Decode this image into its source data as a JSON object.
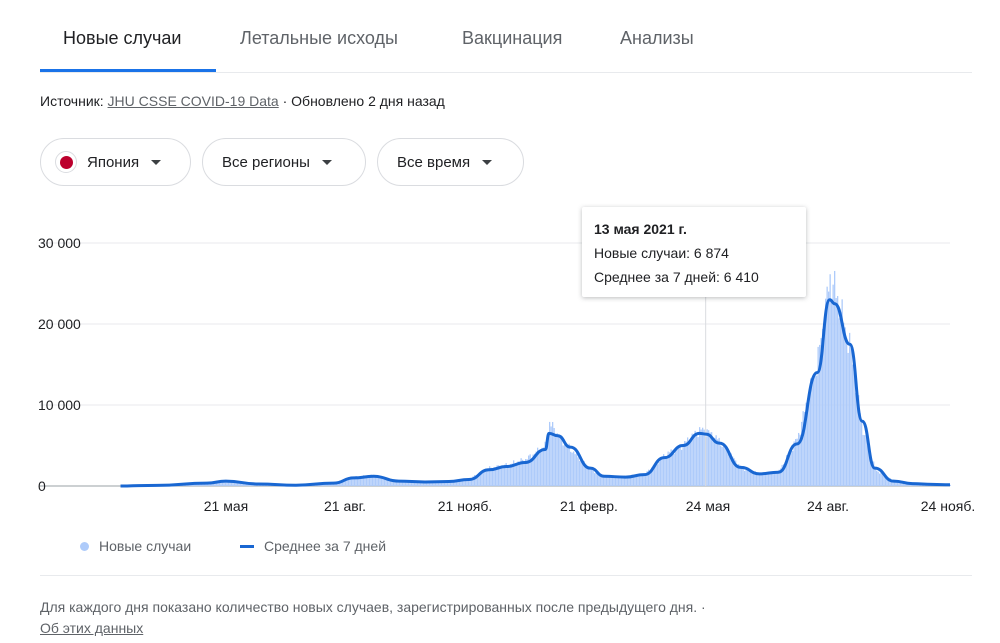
{
  "tabs": [
    {
      "label": "Новые случаи",
      "active": true
    },
    {
      "label": "Летальные исходы",
      "active": false
    },
    {
      "label": "Вакцинация",
      "active": false
    },
    {
      "label": "Анализы",
      "active": false
    }
  ],
  "source": {
    "prefix": "Источник:",
    "link": "JHU CSSE COVID-19 Data",
    "suffix": "· Обновлено 2 дня назад"
  },
  "filters": {
    "country": "Япония",
    "region": "Все регионы",
    "period": "Все время"
  },
  "tooltip": {
    "date": "13 мая 2021 г.",
    "new_cases": "Новые случаи: 6 874",
    "avg7": "Среднее за 7 дней: 6 410"
  },
  "legend": {
    "bars": "Новые случаи",
    "line": "Среднее за 7 дней"
  },
  "footnote": "Для каждого дня показано количество новых случаев, зарегистрированных после предыдущего дня.  ·",
  "about_link": "Об этих данных",
  "colors": {
    "accent": "#1a73e8",
    "avg_line": "#1967d2",
    "bars": "#aecbfa",
    "flag_red": "#bc002d"
  },
  "chart_data": {
    "type": "area",
    "title": "",
    "ylim": [
      0,
      30000
    ],
    "yticks": [
      0,
      10000,
      20000,
      30000
    ],
    "ytick_labels": [
      "0",
      "10 000",
      "20 000",
      "30 000"
    ],
    "xtick_labels": [
      "21 мая",
      "21 авг.",
      "21 нояб.",
      "21 февр.",
      "24 мая",
      "24 авг.",
      "24 нояб."
    ],
    "grid": true,
    "highlight_date": "13 мая 2021 г.",
    "series": [
      {
        "name": "Новые случаи",
        "type": "bar",
        "x": [
          "2020-02",
          "2020-03",
          "2020-04-10",
          "2020-04-25",
          "2020-05-21",
          "2020-06-20",
          "2020-07-20",
          "2020-08-05",
          "2020-08-21",
          "2020-09-10",
          "2020-10-01",
          "2020-10-20",
          "2020-11-05",
          "2020-11-21",
          "2020-12-05",
          "2020-12-20",
          "2021-01-05",
          "2021-01-08",
          "2021-01-15",
          "2021-01-25",
          "2021-02-10",
          "2021-02-21",
          "2021-03-10",
          "2021-03-25",
          "2021-04-10",
          "2021-04-25",
          "2021-05-08",
          "2021-05-13",
          "2021-05-24",
          "2021-06-10",
          "2021-06-25",
          "2021-07-10",
          "2021-07-25",
          "2021-08-10",
          "2021-08-20",
          "2021-08-24",
          "2021-09-05",
          "2021-09-15",
          "2021-09-25",
          "2021-10-10",
          "2021-10-25",
          "2021-11-10",
          "2021-11-24"
        ],
        "values": [
          0,
          100,
          400,
          700,
          300,
          100,
          400,
          1100,
          1300,
          600,
          500,
          600,
          900,
          2200,
          2600,
          3300,
          5000,
          7800,
          6200,
          4500,
          2000,
          1100,
          1200,
          1500,
          3800,
          5200,
          6900,
          6874,
          5500,
          2200,
          1500,
          1800,
          6000,
          15500,
          25800,
          24000,
          17000,
          7000,
          2000,
          600,
          300,
          200,
          150
        ]
      },
      {
        "name": "Среднее за 7 дней",
        "type": "line",
        "x": [
          "2020-02",
          "2020-03",
          "2020-04-10",
          "2020-04-25",
          "2020-05-21",
          "2020-06-20",
          "2020-07-20",
          "2020-08-05",
          "2020-08-21",
          "2020-09-10",
          "2020-10-01",
          "2020-10-20",
          "2020-11-05",
          "2020-11-21",
          "2020-12-05",
          "2020-12-20",
          "2021-01-05",
          "2021-01-08",
          "2021-01-15",
          "2021-01-25",
          "2021-02-10",
          "2021-02-21",
          "2021-03-10",
          "2021-03-25",
          "2021-04-10",
          "2021-04-25",
          "2021-05-08",
          "2021-05-13",
          "2021-05-24",
          "2021-06-10",
          "2021-06-25",
          "2021-07-10",
          "2021-07-25",
          "2021-08-10",
          "2021-08-20",
          "2021-08-24",
          "2021-09-05",
          "2021-09-15",
          "2021-09-25",
          "2021-10-10",
          "2021-10-25",
          "2021-11-10",
          "2021-11-24"
        ],
        "values": [
          0,
          80,
          350,
          600,
          250,
          100,
          350,
          1000,
          1200,
          600,
          500,
          550,
          800,
          2000,
          2400,
          2900,
          4500,
          6500,
          6200,
          4800,
          2200,
          1200,
          1100,
          1400,
          3500,
          5000,
          6500,
          6410,
          5300,
          2300,
          1500,
          1700,
          5200,
          14000,
          23000,
          22500,
          17500,
          8000,
          2200,
          600,
          300,
          200,
          150
        ]
      }
    ]
  }
}
